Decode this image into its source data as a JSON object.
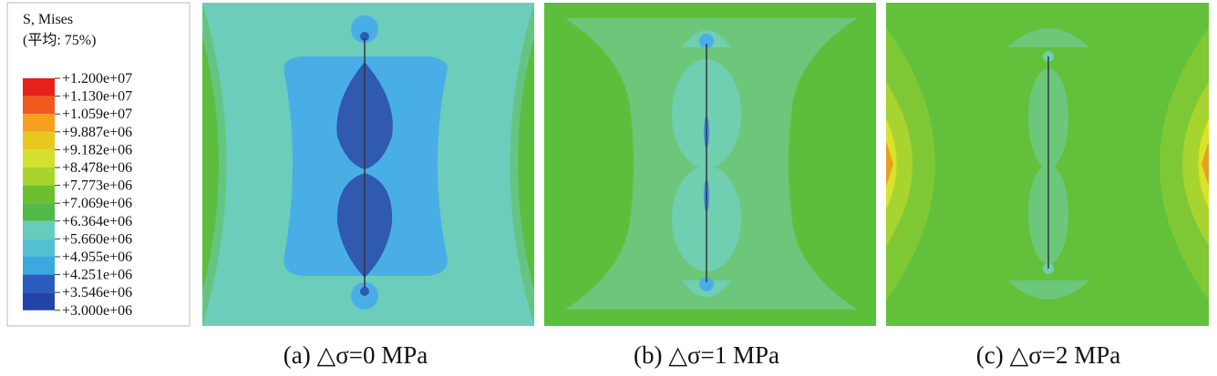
{
  "legend": {
    "title": "S, Mises",
    "subtitle": "(平均: 75%)",
    "labels": [
      "+1.200e+07",
      "+1.130e+07",
      "+1.059e+07",
      "+9.887e+06",
      "+9.182e+06",
      "+8.478e+06",
      "+7.773e+06",
      "+7.069e+06",
      "+6.364e+06",
      "+5.660e+06",
      "+4.955e+06",
      "+4.251e+06",
      "+3.546e+06",
      "+3.000e+06"
    ]
  },
  "panels": [
    {
      "caption": "(a)  △σ=0 MPa"
    },
    {
      "caption": "(b)  △σ=1 MPa"
    },
    {
      "caption": "(c)  △σ=2 MPa"
    }
  ]
}
